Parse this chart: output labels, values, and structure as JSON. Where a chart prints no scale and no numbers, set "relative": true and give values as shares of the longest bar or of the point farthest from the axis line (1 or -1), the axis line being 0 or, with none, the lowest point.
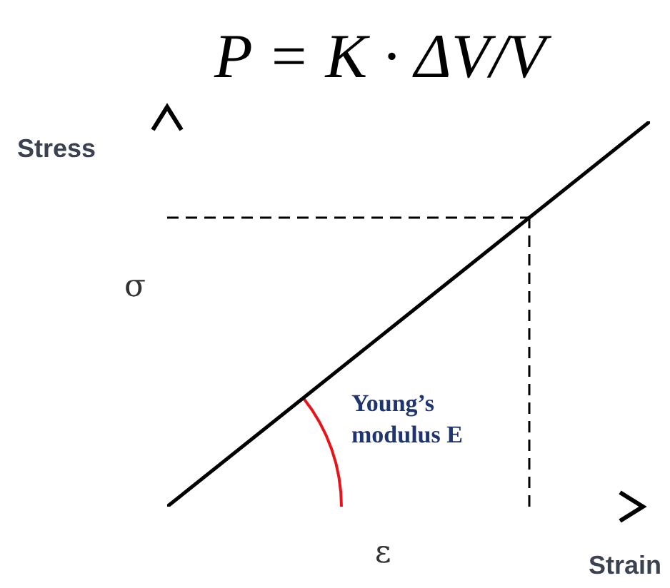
{
  "chart_data": {
    "type": "line",
    "relative": true,
    "categories": [
      null,
      null,
      null,
      null,
      null
    ],
    "series": [
      {
        "color": "#000000",
        "values": [
          0,
          0.25,
          0.5,
          0.75,
          1
        ]
      }
    ],
    "xlabel": "Strain",
    "ylabel": "Stress",
    "marker": "none",
    "line_style": "solid",
    "ref_lines": [
      {
        "axis": "y",
        "value": 0.75,
        "label": "σ",
        "line_style": "dashed",
        "color": "#000000"
      }
    ],
    "annotations": [
      "P = K · ΔV/V",
      "Young’s modulus E",
      "ε"
    ]
  }
}
